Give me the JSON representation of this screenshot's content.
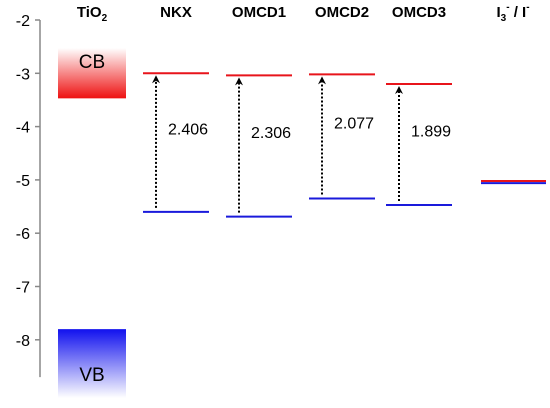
{
  "chart_data": {
    "type": "energy-level-diagram",
    "ylim": [
      -8.7,
      -2
    ],
    "y_ticks": [
      "-2",
      "-3",
      "-4",
      "-5",
      "-6",
      "-7",
      "-8"
    ],
    "colors": {
      "lumo": "#e8141b",
      "homo": "#1a1adb",
      "cb": "#ee1111",
      "vb": "#1111ee",
      "arrow": "#000000"
    },
    "tio2": {
      "label_main": "TiO",
      "label_sub": "2",
      "cb_label": "CB",
      "vb_label": "VB",
      "cb_edge": -3.47,
      "vb_edge": -7.8
    },
    "dyes": [
      {
        "name": "NKX",
        "lumo": -3.0,
        "homo": -5.6,
        "gap": "2.406"
      },
      {
        "name": "OMCD1",
        "lumo": -3.04,
        "homo": -5.69,
        "gap": "2.306"
      },
      {
        "name": "OMCD2",
        "lumo": -3.02,
        "homo": -5.35,
        "gap": "2.077"
      },
      {
        "name": "OMCD3",
        "lumo": -3.2,
        "homo": -5.47,
        "gap": "1.899"
      }
    ],
    "redox": {
      "label_main": "I",
      "label_sub": "3",
      "label_sup": "-",
      "label_sep": " / I",
      "label_sup2": "-",
      "level_red": -5.02,
      "level_blue": -5.06
    }
  }
}
